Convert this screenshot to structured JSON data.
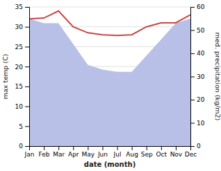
{
  "chart_data": {
    "type": "line",
    "xlabel": "date (month)",
    "ylabel": "max temp (C)",
    "y2label": "med. precipitation (kg/m2)",
    "categories": [
      "Jan",
      "Feb",
      "Mar",
      "Apr",
      "May",
      "Jun",
      "Jul",
      "Aug",
      "Sep",
      "Oct",
      "Nov",
      "Dec"
    ],
    "series": [
      {
        "type": "area",
        "axis": "y2",
        "color": "#b8c0e8",
        "values": [
          55,
          53,
          53,
          44,
          35,
          33,
          32,
          32,
          39,
          46,
          53,
          55
        ]
      },
      {
        "type": "line",
        "color": "#cc4444",
        "values": [
          32.0,
          32.2,
          34.0,
          30.0,
          28.5,
          28.0,
          27.8,
          28.0,
          30.0,
          31.0,
          31.0,
          33.0
        ]
      }
    ],
    "ylim": [
      0,
      35
    ],
    "yticks": [
      0,
      5,
      10,
      15,
      20,
      25,
      30,
      35
    ],
    "y2lim": [
      0,
      60
    ],
    "y2ticks": [
      0,
      10,
      20,
      30,
      40,
      50,
      60
    ],
    "grid": true
  }
}
